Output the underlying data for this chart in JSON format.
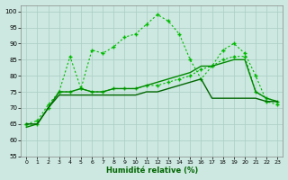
{
  "x": [
    0,
    1,
    2,
    3,
    4,
    5,
    6,
    7,
    8,
    9,
    10,
    11,
    12,
    13,
    14,
    15,
    16,
    17,
    18,
    19,
    20,
    21,
    22,
    23
  ],
  "series1": [
    65,
    66,
    71,
    75,
    86,
    76,
    88,
    87,
    89,
    92,
    93,
    96,
    99,
    97,
    93,
    85,
    79,
    83,
    88,
    90,
    87,
    80,
    72,
    71
  ],
  "series2": [
    64,
    65,
    70,
    75,
    75,
    76,
    75,
    75,
    76,
    76,
    76,
    77,
    78,
    79,
    80,
    81,
    83,
    83,
    84,
    85,
    85,
    75,
    73,
    72
  ],
  "series3": [
    65,
    65,
    70,
    74,
    74,
    74,
    74,
    74,
    74,
    74,
    74,
    75,
    75,
    76,
    77,
    78,
    79,
    73,
    73,
    73,
    73,
    73,
    72,
    72
  ],
  "series4": [
    65,
    65,
    70,
    75,
    75,
    76,
    75,
    75,
    76,
    76,
    76,
    77,
    77,
    78,
    79,
    80,
    82,
    83,
    85,
    86,
    86,
    75,
    73,
    72
  ],
  "bg_color": "#cce8e0",
  "grid_color": "#aaccc4",
  "line_color_zigzag": "#00bb00",
  "line_color_smooth1": "#008800",
  "line_color_smooth2": "#006600",
  "xlabel": "Humidité relative (%)",
  "ylim": [
    55,
    102
  ],
  "xlim": [
    -0.5,
    23.5
  ],
  "yticks": [
    55,
    60,
    65,
    70,
    75,
    80,
    85,
    90,
    95,
    100
  ],
  "xticks": [
    0,
    1,
    2,
    3,
    4,
    5,
    6,
    7,
    8,
    9,
    10,
    11,
    12,
    13,
    14,
    15,
    16,
    17,
    18,
    19,
    20,
    21,
    22,
    23
  ]
}
